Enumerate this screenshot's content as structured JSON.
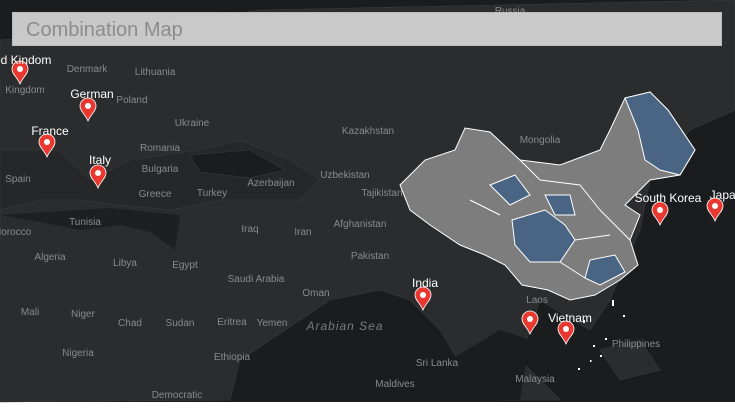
{
  "title": "Combination Map",
  "markers": [
    {
      "label": "United Kindom"
    },
    {
      "label": "German"
    },
    {
      "label": "France"
    },
    {
      "label": "Italy"
    },
    {
      "label": "India"
    },
    {
      "label": "Vietnam"
    },
    {
      "label": "South Korea"
    },
    {
      "label": "Japan"
    }
  ],
  "map_labels": [
    "Russia",
    "Denmark",
    "Lithuania",
    "Kingdom",
    "Poland",
    "Ukraine",
    "Kazakhstan",
    "Mongolia",
    "Romania",
    "Bulgaria",
    "Greece",
    "Turkey",
    "Uzbekistan",
    "Azerbaijan",
    "Tajikistan",
    "Spain",
    "Tunisia",
    "Morocco",
    "Iraq",
    "Iran",
    "Afghanistan",
    "Pakistan",
    "Algeria",
    "Libya",
    "Egypt",
    "Saudi Arabia",
    "Oman",
    "Mali",
    "Niger",
    "Chad",
    "Sudan",
    "Eritrea",
    "Yemen",
    "Ethiopia",
    "Nigeria",
    "Arabian Sea",
    "Sri Lanka",
    "Maldives",
    "Laos",
    "Philippines",
    "Malaysia",
    "Democratic"
  ]
}
